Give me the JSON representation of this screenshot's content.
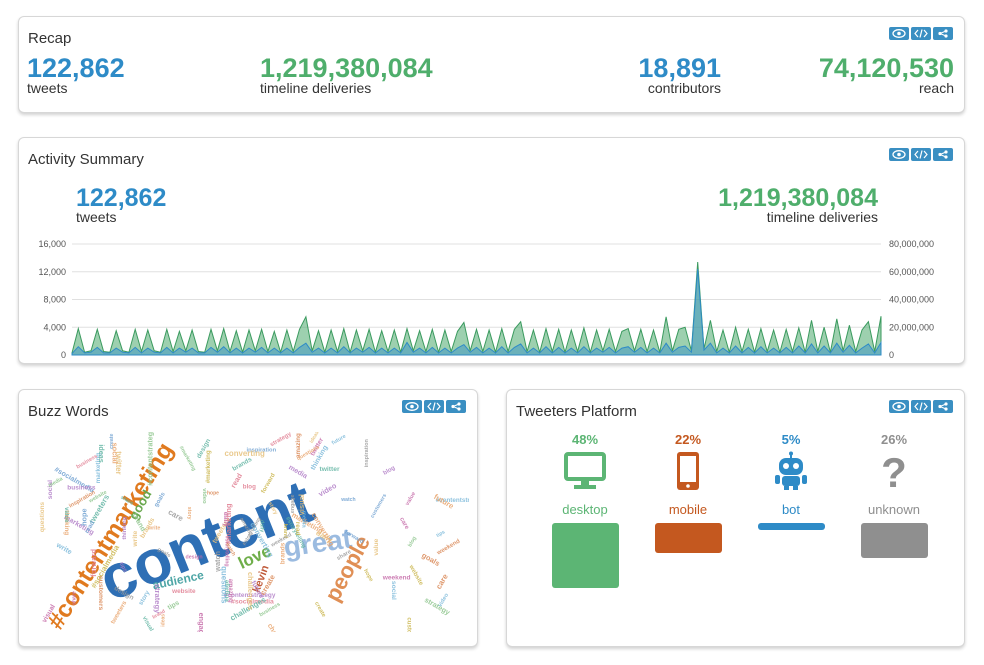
{
  "recap": {
    "title": "Recap",
    "tweets": "122,862",
    "tweets_label": "tweets",
    "deliveries": "1,219,380,084",
    "deliveries_label": "timeline deliveries",
    "contributors": "18,891",
    "contributors_label": "contributors",
    "reach": "74,120,530",
    "reach_label": "reach"
  },
  "activity": {
    "title": "Activity Summary",
    "tweets": "122,862",
    "tweets_label": "tweets",
    "deliveries": "1,219,380,084",
    "deliveries_label": "timeline deliveries",
    "left_ticks": [
      "16,000",
      "12,000",
      "8,000",
      "4,000",
      "0"
    ],
    "right_ticks": [
      "80,000,000",
      "60,000,000",
      "40,000,000",
      "20,000,000",
      "0"
    ]
  },
  "chart_data": {
    "type": "area",
    "ylim_left": [
      0,
      16000
    ],
    "ylim_right": [
      0,
      80000000
    ],
    "grid": true,
    "series": [
      {
        "values": [
          300,
          3800,
          400,
          600,
          3700,
          500,
          400,
          3500,
          600,
          400,
          3700,
          500,
          3600,
          600,
          400,
          3700,
          500,
          3400,
          600,
          3600,
          500,
          400,
          3700,
          600,
          3800,
          500,
          3500,
          400,
          3600,
          600,
          3700,
          500,
          3400,
          400,
          3600,
          500,
          3700,
          5500,
          600,
          3500,
          400,
          3600,
          500,
          3800,
          400,
          3600,
          600,
          3700,
          400,
          3500,
          500,
          3600,
          400,
          3800,
          600,
          3500,
          500,
          3700,
          400,
          3600,
          500,
          3400,
          4700,
          600,
          3700,
          500,
          3600,
          400,
          3800,
          500,
          3700,
          4800,
          500,
          3600,
          400,
          3800,
          500,
          3700,
          400,
          3600,
          500,
          3900,
          400,
          3600,
          600,
          3700,
          500,
          3400,
          3800,
          600,
          3700,
          500,
          3600,
          400,
          5500,
          600,
          3700,
          4000,
          600,
          13400,
          900,
          5000,
          500,
          3600,
          400,
          4000,
          500,
          3700,
          400,
          3800,
          500,
          3600,
          400,
          3700,
          500,
          3900,
          400,
          5000,
          500,
          4000,
          400,
          5200,
          600,
          4300,
          500,
          3600,
          4800,
          500,
          5600
        ]
      },
      {
        "values": [
          200,
          1200,
          300,
          400,
          1100,
          300,
          300,
          1000,
          400,
          300,
          1100,
          300,
          1000,
          400,
          300,
          1100,
          300,
          1000,
          400,
          1000,
          300,
          300,
          1100,
          400,
          1200,
          300,
          1000,
          300,
          1000,
          400,
          1100,
          300,
          1000,
          300,
          1000,
          300,
          1100,
          1700,
          400,
          1000,
          300,
          1000,
          300,
          1200,
          300,
          1000,
          400,
          1100,
          300,
          1000,
          300,
          1000,
          300,
          1800,
          400,
          1000,
          300,
          1100,
          300,
          1000,
          300,
          1000,
          1500,
          400,
          1100,
          300,
          1000,
          300,
          1200,
          300,
          1100,
          1600,
          300,
          1000,
          300,
          1200,
          300,
          1100,
          300,
          1000,
          300,
          1200,
          300,
          1000,
          400,
          1100,
          300,
          1000,
          1200,
          400,
          1100,
          300,
          1000,
          300,
          1700,
          400,
          1100,
          1300,
          400,
          12400,
          700,
          1700,
          300,
          1000,
          300,
          1300,
          300,
          1100,
          300,
          1200,
          300,
          1000,
          300,
          1100,
          300,
          1300,
          300,
          1600,
          300,
          1300,
          300,
          1700,
          400,
          1400,
          300,
          1000,
          1600,
          300,
          1800
        ]
      }
    ]
  },
  "buzz": {
    "title": "Buzz Words",
    "words": [
      "content",
      "#contentmarketing",
      "great",
      "people",
      "love",
      "audience",
      "kevin",
      "good",
      "#storytelling",
      "twitter",
      "tweeters",
      "story",
      "marketing",
      "#contentstrategy",
      "strategy",
      "brand",
      "#socialmedia",
      "create",
      "inspiration",
      "amazing",
      "share",
      "daily",
      "challenges",
      "converting",
      "thinking",
      "tips",
      "blog",
      "#marketing",
      "forward",
      "customers",
      "goals",
      "weekend",
      "engage",
      "value",
      "brands",
      "questions",
      "social",
      "media",
      "business",
      "website",
      "read",
      "hope",
      "watch",
      "care",
      "design",
      "visual",
      "ideas",
      "write",
      "future",
      "video"
    ]
  },
  "platform": {
    "title": "Tweeters Platform",
    "items": [
      {
        "pct": "48%",
        "label": "desktop",
        "color": "#5cb574",
        "value": 48,
        "icon": "desktop-icon"
      },
      {
        "pct": "22%",
        "label": "mobile",
        "color": "#c4581f",
        "value": 22,
        "icon": "mobile-phone-icon"
      },
      {
        "pct": "5%",
        "label": "bot",
        "color": "#2e8bc7",
        "value": 5,
        "icon": "robot-icon"
      },
      {
        "pct": "26%",
        "label": "unknown",
        "color": "#8f8f8f",
        "value": 26,
        "icon": "question-mark-icon"
      }
    ]
  }
}
